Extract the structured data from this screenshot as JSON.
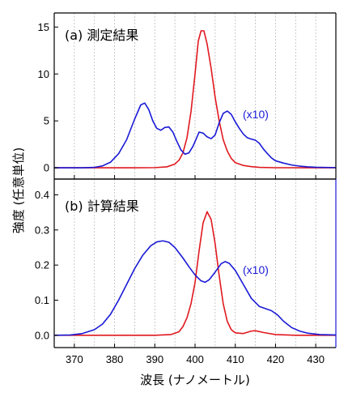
{
  "colors": {
    "red": "#e0191f",
    "blue": "#1a1ad6",
    "axis": "#000000",
    "grid": "#bbbbbb",
    "right_axis_bottom": "#1a1ad6"
  },
  "chart_data": [
    {
      "type": "line",
      "panel": "top",
      "label": "(a) 測定結果",
      "scale_note": "(x10)",
      "xlim": [
        365,
        435
      ],
      "ylim": [
        -1.2,
        16.5
      ],
      "yticks": [
        "0",
        "5",
        "10",
        "15"
      ],
      "ytick_values": [
        0,
        5,
        10,
        15
      ],
      "grid_vertical": true,
      "series": [
        {
          "color": "red",
          "points": [
            [
              365,
              0
            ],
            [
              385,
              0
            ],
            [
              390,
              0.02
            ],
            [
              393,
              0.1
            ],
            [
              395,
              0.4
            ],
            [
              396,
              0.8
            ],
            [
              397,
              1.6
            ],
            [
              398,
              3.2
            ],
            [
              399,
              6.0
            ],
            [
              400,
              10.0
            ],
            [
              400.8,
              13.5
            ],
            [
              401.5,
              14.6
            ],
            [
              402.2,
              14.6
            ],
            [
              403,
              13.2
            ],
            [
              404,
              10.6
            ],
            [
              405,
              7.5
            ],
            [
              406,
              5.0
            ],
            [
              407,
              3.0
            ],
            [
              408,
              1.8
            ],
            [
              409,
              1.0
            ],
            [
              410,
              0.55
            ],
            [
              412,
              0.25
            ],
            [
              414,
              0.12
            ],
            [
              416,
              0.05
            ],
            [
              420,
              0.01
            ],
            [
              435,
              0
            ]
          ]
        },
        {
          "color": "blue",
          "points": [
            [
              365,
              0
            ],
            [
              372,
              0
            ],
            [
              375,
              0.05
            ],
            [
              377,
              0.2
            ],
            [
              379,
              0.6
            ],
            [
              381,
              1.5
            ],
            [
              383,
              3.0
            ],
            [
              385,
              5.2
            ],
            [
              386.5,
              6.7
            ],
            [
              387.5,
              6.9
            ],
            [
              388.5,
              6.2
            ],
            [
              389.5,
              5.0
            ],
            [
              390.5,
              4.2
            ],
            [
              391.5,
              4.0
            ],
            [
              392.5,
              4.3
            ],
            [
              393.5,
              4.35
            ],
            [
              394.5,
              3.8
            ],
            [
              395.5,
              2.8
            ],
            [
              396.5,
              1.9
            ],
            [
              397.5,
              1.45
            ],
            [
              398.5,
              1.6
            ],
            [
              399.5,
              2.3
            ],
            [
              400.5,
              3.3
            ],
            [
              401,
              3.8
            ],
            [
              402,
              3.7
            ],
            [
              403,
              3.3
            ],
            [
              404,
              3.1
            ],
            [
              405,
              3.5
            ],
            [
              406,
              4.8
            ],
            [
              407,
              5.8
            ],
            [
              408,
              6.05
            ],
            [
              409,
              5.7
            ],
            [
              410,
              4.9
            ],
            [
              411,
              4.2
            ],
            [
              412,
              3.6
            ],
            [
              413,
              3.2
            ],
            [
              414,
              3.05
            ],
            [
              415,
              2.95
            ],
            [
              416,
              2.6
            ],
            [
              417,
              2.0
            ],
            [
              418,
              1.5
            ],
            [
              419,
              1.05
            ],
            [
              420,
              0.75
            ],
            [
              422,
              0.5
            ],
            [
              424,
              0.3
            ],
            [
              426,
              0.18
            ],
            [
              428,
              0.1
            ],
            [
              430,
              0.06
            ],
            [
              435,
              0.02
            ]
          ]
        }
      ]
    },
    {
      "type": "line",
      "panel": "bottom",
      "label": "(b) 計算結果",
      "scale_note": "(x10)",
      "xlim": [
        365,
        435
      ],
      "ylim": [
        -0.035,
        0.445
      ],
      "yticks": [
        "0.0",
        "0.1",
        "0.2",
        "0.3",
        "0.4"
      ],
      "ytick_values": [
        0.0,
        0.1,
        0.2,
        0.3,
        0.4
      ],
      "xticks": [
        "370",
        "380",
        "390",
        "400",
        "410",
        "420",
        "430"
      ],
      "xtick_values": [
        370,
        380,
        390,
        400,
        410,
        420,
        430
      ],
      "xlabel": "波長 (ナノメートル)",
      "grid_vertical": true,
      "series": [
        {
          "color": "red",
          "points": [
            [
              365,
              0
            ],
            [
              390,
              0
            ],
            [
              394,
              0.002
            ],
            [
              396,
              0.01
            ],
            [
              397,
              0.025
            ],
            [
              398,
              0.05
            ],
            [
              399,
              0.09
            ],
            [
              400,
              0.15
            ],
            [
              401,
              0.24
            ],
            [
              402,
              0.32
            ],
            [
              403,
              0.352
            ],
            [
              404,
              0.33
            ],
            [
              405,
              0.26
            ],
            [
              406,
              0.17
            ],
            [
              407,
              0.09
            ],
            [
              408,
              0.04
            ],
            [
              409,
              0.016
            ],
            [
              410,
              0.007
            ],
            [
              412,
              0.005
            ],
            [
              414,
              0.012
            ],
            [
              415,
              0.013
            ],
            [
              417,
              0.008
            ],
            [
              420,
              0.002
            ],
            [
              425,
              0
            ],
            [
              435,
              0
            ]
          ]
        },
        {
          "color": "blue",
          "points": [
            [
              365,
              0
            ],
            [
              369,
              0.001
            ],
            [
              372,
              0.005
            ],
            [
              375,
              0.016
            ],
            [
              377,
              0.032
            ],
            [
              379,
              0.06
            ],
            [
              381,
              0.1
            ],
            [
              383,
              0.145
            ],
            [
              385,
              0.19
            ],
            [
              387,
              0.228
            ],
            [
              389,
              0.255
            ],
            [
              390.5,
              0.266
            ],
            [
              392,
              0.269
            ],
            [
              393.5,
              0.265
            ],
            [
              395,
              0.25
            ],
            [
              397,
              0.22
            ],
            [
              398.5,
              0.195
            ],
            [
              400,
              0.172
            ],
            [
              401.5,
              0.155
            ],
            [
              402.5,
              0.151
            ],
            [
              403.5,
              0.158
            ],
            [
              405,
              0.18
            ],
            [
              406.5,
              0.204
            ],
            [
              407.5,
              0.21
            ],
            [
              408.5,
              0.205
            ],
            [
              410,
              0.185
            ],
            [
              412,
              0.145
            ],
            [
              414,
              0.105
            ],
            [
              416,
              0.082
            ],
            [
              417.5,
              0.076
            ],
            [
              419,
              0.07
            ],
            [
              420.5,
              0.058
            ],
            [
              422,
              0.04
            ],
            [
              424,
              0.022
            ],
            [
              426,
              0.012
            ],
            [
              428,
              0.006
            ],
            [
              431,
              0.002
            ],
            [
              435,
              0.001
            ]
          ]
        }
      ]
    }
  ],
  "shared": {
    "ylabel": "強度 (任意単位)"
  }
}
